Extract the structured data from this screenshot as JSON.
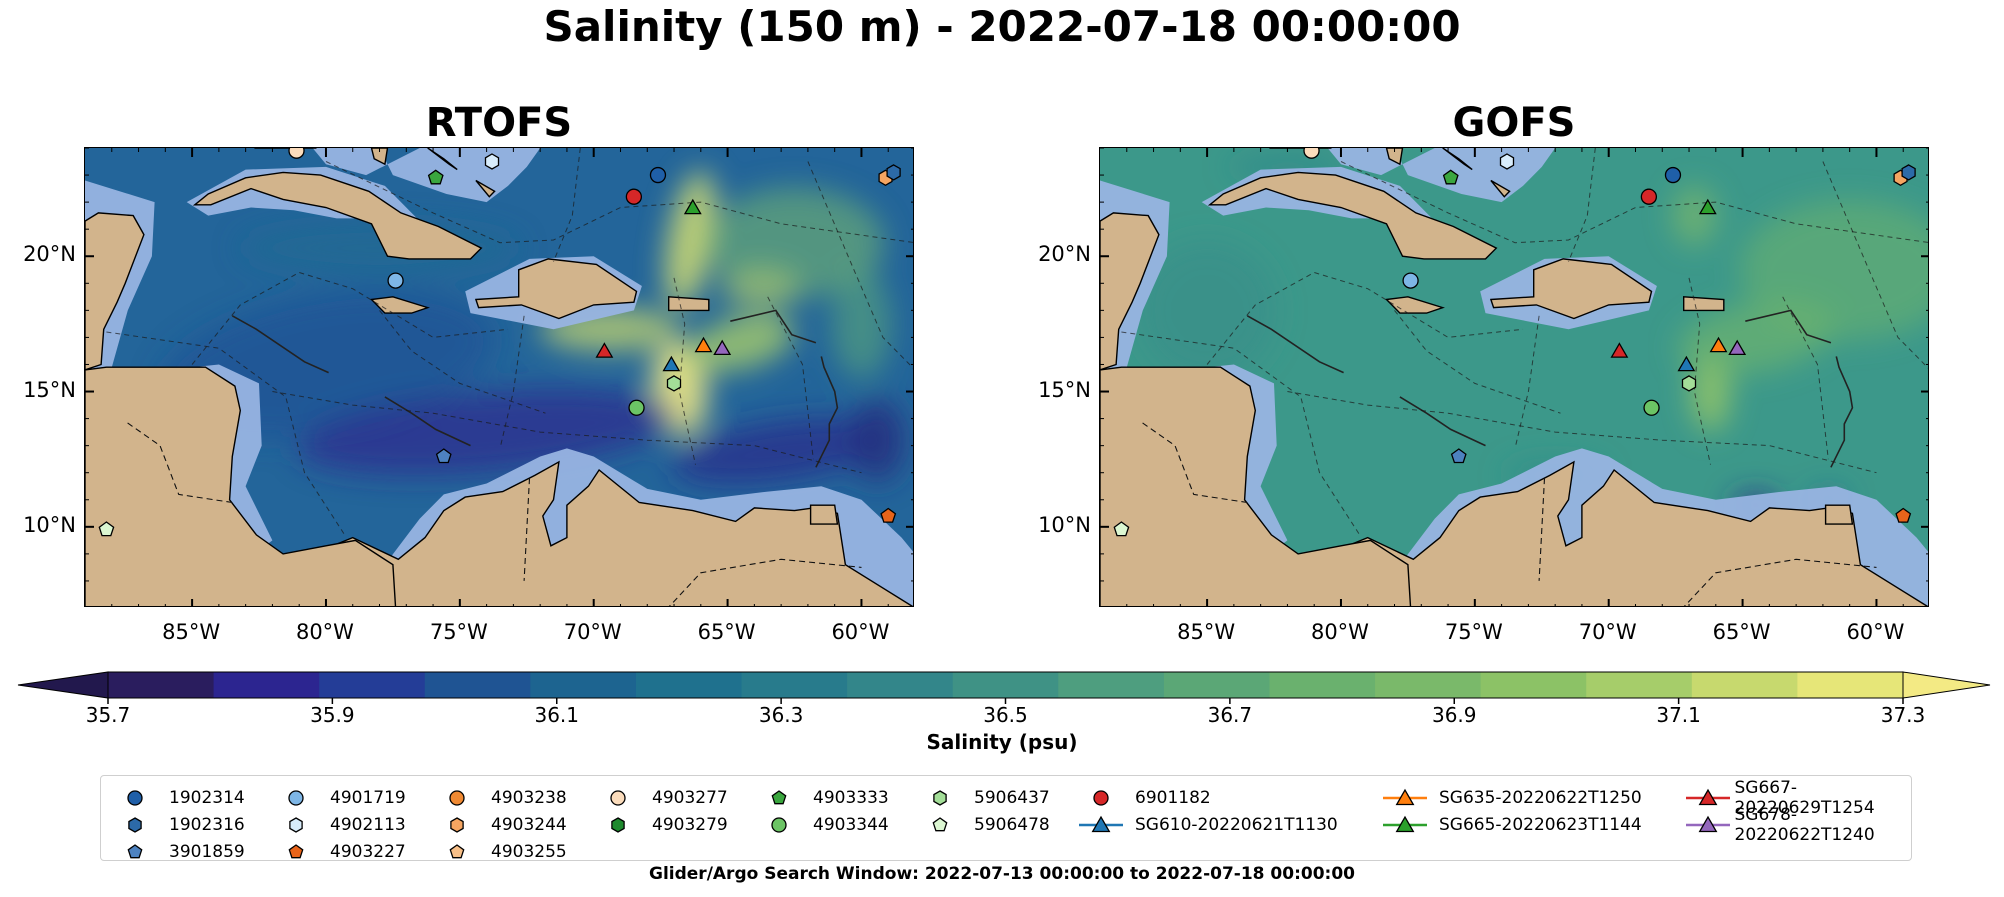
{
  "title": "Salinity (150 m) - 2022-07-18 00:00:00",
  "panels": [
    {
      "title": "RTOFS",
      "mode": "rtofs"
    },
    {
      "title": "GOFS",
      "mode": "gofs"
    }
  ],
  "lat_ticks": [
    "20°N",
    "15°N",
    "10°N"
  ],
  "lat_values": [
    20,
    15,
    10
  ],
  "lon_ticks": [
    "85°W",
    "80°W",
    "75°W",
    "70°W",
    "65°W",
    "60°W"
  ],
  "lon_values": [
    -85,
    -80,
    -75,
    -70,
    -65,
    -60
  ],
  "extent": {
    "lon": [
      -89,
      -58
    ],
    "lat": [
      7,
      24
    ]
  },
  "colorbar": {
    "label": "Salinity (psu)",
    "min": 35.7,
    "max": 37.3,
    "step": 0.1,
    "ticks": [
      "35.7",
      "35.9",
      "36.1",
      "36.3",
      "36.5",
      "36.7",
      "36.9",
      "37.1",
      "37.3"
    ],
    "colors": [
      "#2a1d5e",
      "#2c2590",
      "#243d97",
      "#1f5493",
      "#1d6490",
      "#1f718e",
      "#287b8c",
      "#33868a",
      "#3f9285",
      "#4e9e7f",
      "#5ba776",
      "#6ab16e",
      "#7ab96a",
      "#8cc266",
      "#a6cd6a",
      "#c7d96e",
      "#e6e678"
    ],
    "over": "#f3ea84",
    "under": "#22184d"
  },
  "map_colors": {
    "land": "#d2b48c",
    "shelf": "#98b4e2",
    "pacific": "#23195b"
  },
  "legend_items": [
    {
      "label": "1902314",
      "marker": "circle",
      "color": "#1f5fa8"
    },
    {
      "label": "1902316",
      "marker": "hexagon",
      "color": "#2c6aa8"
    },
    {
      "label": "3901859",
      "marker": "pentagon",
      "color": "#4d82c0"
    },
    {
      "label": "4901719",
      "marker": "circle",
      "color": "#7eb6e6"
    },
    {
      "label": "4902113",
      "marker": "hexagon",
      "color": "#d8ecfb"
    },
    {
      "label": "4903227",
      "marker": "pentagon",
      "color": "#e8641a"
    },
    {
      "label": "4903238",
      "marker": "circle",
      "color": "#f08a33"
    },
    {
      "label": "4903244",
      "marker": "hexagon",
      "color": "#f5a561"
    },
    {
      "label": "4903255",
      "marker": "pentagon",
      "color": "#f7bf88"
    },
    {
      "label": "4903277",
      "marker": "circle",
      "color": "#fbdcbc"
    },
    {
      "label": "4903279",
      "marker": "hexagon",
      "color": "#1e8a2e"
    },
    {
      "label": "4903333",
      "marker": "pentagon",
      "color": "#3aa63e"
    },
    {
      "label": "4903344",
      "marker": "circle",
      "color": "#6cc465"
    },
    {
      "label": "5906437",
      "marker": "hexagon",
      "color": "#a3de98"
    },
    {
      "label": "5906478",
      "marker": "pentagon",
      "color": "#dcf7d2"
    },
    {
      "label": "6901182",
      "marker": "circle",
      "color": "#d62728"
    },
    {
      "label": "SG610-20220621T1130",
      "marker": "triangle-line",
      "color": "#1f77b4"
    },
    {
      "label": "SG635-20220622T1250",
      "marker": "triangle-line",
      "color": "#ff7f0e"
    },
    {
      "label": "SG665-20220623T1144",
      "marker": "triangle-line",
      "color": "#2ca02c"
    },
    {
      "label": "SG667-20220629T1254",
      "marker": "triangle-line",
      "color": "#d62728"
    },
    {
      "label": "SG678-20220622T1240",
      "marker": "triangle-line",
      "color": "#9467bd"
    }
  ],
  "map_markers": [
    {
      "id": "1902314",
      "lon": -67.6,
      "lat": 23.0
    },
    {
      "id": "4902113",
      "lon": -73.8,
      "lat": 23.5
    },
    {
      "id": "4903277",
      "lon": -81.1,
      "lat": 23.9
    },
    {
      "id": "4903333",
      "lon": -75.9,
      "lat": 22.9
    },
    {
      "id": "6901182",
      "lon": -68.5,
      "lat": 22.2
    },
    {
      "id": "SG665-20220623T1144",
      "lon": -66.3,
      "lat": 21.8
    },
    {
      "id": "4903244",
      "lon": -59.1,
      "lat": 22.9
    },
    {
      "id": "1902316",
      "lon": -58.8,
      "lat": 23.1
    },
    {
      "id": "4901719",
      "lon": -77.4,
      "lat": 19.1
    },
    {
      "id": "SG667-20220629T1254",
      "lon": -69.6,
      "lat": 16.5
    },
    {
      "id": "SG610-20220621T1130",
      "lon": -67.1,
      "lat": 16.0
    },
    {
      "id": "SG635-20220622T1250",
      "lon": -65.9,
      "lat": 16.7
    },
    {
      "id": "SG678-20220622T1240",
      "lon": -65.2,
      "lat": 16.6
    },
    {
      "id": "5906437",
      "lon": -67.0,
      "lat": 15.3
    },
    {
      "id": "4903344",
      "lon": -68.4,
      "lat": 14.4
    },
    {
      "id": "3901859",
      "lon": -75.6,
      "lat": 12.6
    },
    {
      "id": "5906478",
      "lon": -88.2,
      "lat": 9.9
    },
    {
      "id": "4903227",
      "lon": -59.0,
      "lat": 10.4
    }
  ],
  "legend_caption": "Glider/Argo Search Window: 2022-07-13 00:00:00 to 2022-07-18 00:00:00"
}
